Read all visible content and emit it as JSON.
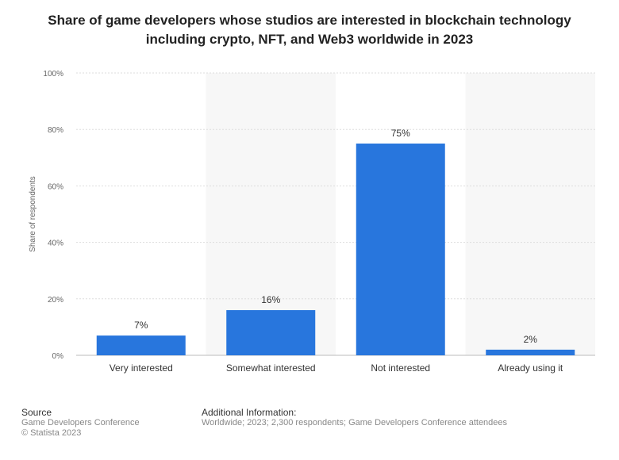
{
  "chart_data": {
    "type": "bar",
    "title": "Share of game developers whose studios are interested in blockchain technology including crypto, NFT, and Web3 worldwide in 2023",
    "categories": [
      "Very interested",
      "Somewhat interested",
      "Not interested",
      "Already using it"
    ],
    "values": [
      7,
      16,
      75,
      2
    ],
    "data_labels": [
      "7%",
      "16%",
      "75%",
      "2%"
    ],
    "ylabel": "Share of respondents",
    "ylim": [
      0,
      100
    ],
    "yticks": [
      "0%",
      "20%",
      "40%",
      "60%",
      "80%",
      "100%"
    ],
    "grid": true,
    "bar_color": "#2876dd"
  },
  "footer": {
    "source_heading": "Source",
    "source": "Game Developers Conference",
    "copyright": "© Statista 2023",
    "info_heading": "Additional Information:",
    "info": "Worldwide; 2023; 2,300 respondents; Game Developers Conference attendees"
  }
}
